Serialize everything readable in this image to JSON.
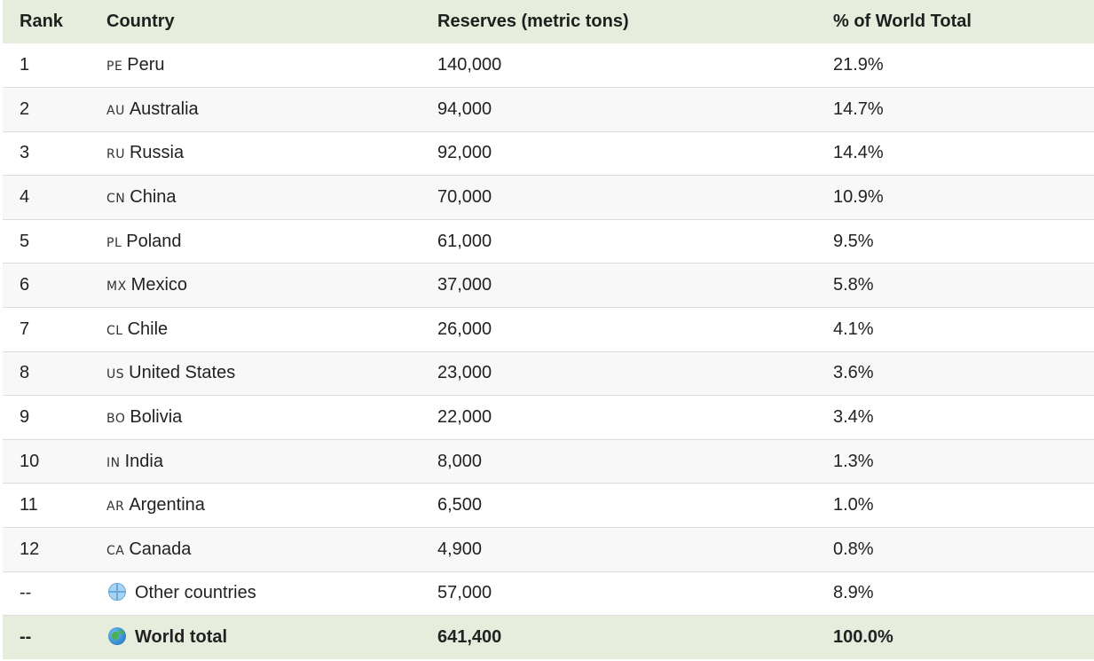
{
  "headers": {
    "rank": "Rank",
    "country": "Country",
    "reserves": "Reserves (metric tons)",
    "pct": "% of World Total"
  },
  "rows": [
    {
      "rank": "1",
      "code": "PE",
      "country": "Peru",
      "reserves": "140,000",
      "pct": "21.9%"
    },
    {
      "rank": "2",
      "code": "AU",
      "country": "Australia",
      "reserves": "94,000",
      "pct": "14.7%"
    },
    {
      "rank": "3",
      "code": "RU",
      "country": "Russia",
      "reserves": "92,000",
      "pct": "14.4%"
    },
    {
      "rank": "4",
      "code": "CN",
      "country": "China",
      "reserves": "70,000",
      "pct": "10.9%"
    },
    {
      "rank": "5",
      "code": "PL",
      "country": "Poland",
      "reserves": "61,000",
      "pct": "9.5%"
    },
    {
      "rank": "6",
      "code": "MX",
      "country": "Mexico",
      "reserves": "37,000",
      "pct": "5.8%"
    },
    {
      "rank": "7",
      "code": "CL",
      "country": "Chile",
      "reserves": "26,000",
      "pct": "4.1%"
    },
    {
      "rank": "8",
      "code": "US",
      "country": "United States",
      "reserves": "23,000",
      "pct": "3.6%"
    },
    {
      "rank": "9",
      "code": "BO",
      "country": "Bolivia",
      "reserves": "22,000",
      "pct": "3.4%"
    },
    {
      "rank": "10",
      "code": "IN",
      "country": "India",
      "reserves": "8,000",
      "pct": "1.3%"
    },
    {
      "rank": "11",
      "code": "AR",
      "country": "Argentina",
      "reserves": "6,500",
      "pct": "1.0%"
    },
    {
      "rank": "12",
      "code": "CA",
      "country": "Canada",
      "reserves": "4,900",
      "pct": "0.8%"
    }
  ],
  "other": {
    "rank": "--",
    "icon": "globe-meridians-icon",
    "country": "Other countries",
    "reserves": "57,000",
    "pct": "8.9%"
  },
  "total": {
    "rank": "--",
    "icon": "globe-earth-icon",
    "country": "World total",
    "reserves": "641,400",
    "pct": "100.0%"
  },
  "colors": {
    "header_bg": "#e7eddc",
    "total_bg": "#e7eddc",
    "zebra_bg": "#f8f8f8",
    "row_border": "#dcdcdc"
  }
}
